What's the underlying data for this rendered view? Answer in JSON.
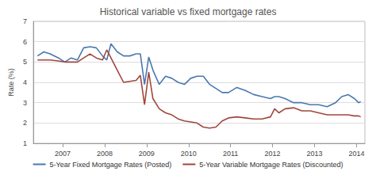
{
  "chart_data": {
    "type": "line",
    "title": "Historical variable vs fixed mortgage rates",
    "y_label": "Rate (%)",
    "x": [
      2006.4,
      2006.55,
      2006.7,
      2006.9,
      2007.05,
      2007.2,
      2007.35,
      2007.5,
      2007.65,
      2007.8,
      2007.95,
      2008.05,
      2008.15,
      2008.3,
      2008.45,
      2008.6,
      2008.75,
      2008.85,
      2008.95,
      2009.05,
      2009.15,
      2009.3,
      2009.45,
      2009.6,
      2009.75,
      2009.9,
      2010.05,
      2010.2,
      2010.35,
      2010.5,
      2010.65,
      2010.8,
      2010.95,
      2011.15,
      2011.35,
      2011.55,
      2011.75,
      2011.95,
      2012.05,
      2012.15,
      2012.3,
      2012.5,
      2012.7,
      2012.9,
      2013.1,
      2013.3,
      2013.5,
      2013.65,
      2013.8,
      2013.95,
      2014.05,
      2014.1
    ],
    "series": [
      {
        "name": "5-Year Fixed Mortgage Rates (Posted)",
        "color": "#4a78b0",
        "values": [
          5.3,
          5.5,
          5.4,
          5.2,
          5.0,
          5.2,
          5.1,
          5.7,
          5.75,
          5.7,
          5.3,
          5.1,
          5.9,
          5.5,
          5.3,
          5.3,
          5.4,
          5.4,
          3.9,
          5.25,
          4.6,
          3.9,
          4.3,
          4.2,
          4.0,
          3.9,
          4.2,
          4.3,
          4.3,
          3.9,
          3.7,
          3.5,
          3.5,
          3.75,
          3.6,
          3.4,
          3.3,
          3.2,
          3.3,
          3.3,
          3.2,
          3.0,
          3.0,
          2.9,
          2.9,
          2.8,
          3.0,
          3.3,
          3.4,
          3.2,
          3.0,
          3.05
        ]
      },
      {
        "name": "5-Year Variable Mortgage Rates (Discounted)",
        "color": "#a0463c",
        "values": [
          5.1,
          5.1,
          5.1,
          5.05,
          5.0,
          5.0,
          5.0,
          5.2,
          5.4,
          5.2,
          5.1,
          5.6,
          5.2,
          4.6,
          4.0,
          4.05,
          4.1,
          4.35,
          2.9,
          4.5,
          3.2,
          2.7,
          2.5,
          2.4,
          2.2,
          2.1,
          2.05,
          2.0,
          1.8,
          1.75,
          1.8,
          2.1,
          2.25,
          2.3,
          2.25,
          2.2,
          2.2,
          2.3,
          2.7,
          2.5,
          2.7,
          2.75,
          2.6,
          2.6,
          2.5,
          2.4,
          2.4,
          2.4,
          2.4,
          2.35,
          2.35,
          2.3
        ]
      }
    ],
    "xlim": [
      2006.3,
      2014.2
    ],
    "xticks": [
      2007,
      2008,
      2009,
      2010,
      2011,
      2012,
      2013,
      2014
    ],
    "ylim": [
      1,
      7
    ],
    "yticks": [
      1,
      2,
      3,
      4,
      5,
      6,
      7
    ],
    "grid": true,
    "legend": "bottom"
  }
}
